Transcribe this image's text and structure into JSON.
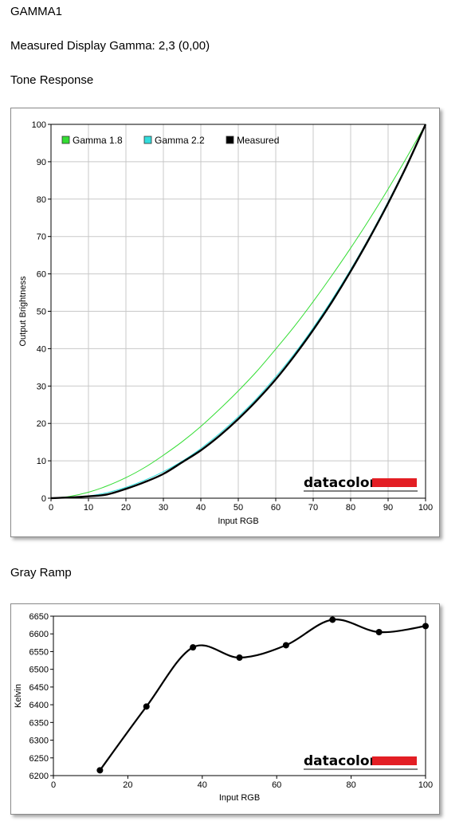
{
  "header": {
    "title": "GAMMA1",
    "gamma_label": "Measured Display Gamma: 2,3 (0,00)"
  },
  "sections": {
    "tone_title": "Tone Response",
    "gray_title": "Gray Ramp"
  },
  "brand": {
    "logo_text": "datacolor",
    "logo_color": "#e31e24"
  },
  "chart_data": [
    {
      "id": "tone",
      "type": "line",
      "xlabel": "Input RGB",
      "ylabel": "Output Brightness",
      "xlim": [
        0,
        100
      ],
      "ylim": [
        0,
        100
      ],
      "xticks": [
        "0",
        "10",
        "20",
        "30",
        "40",
        "50",
        "60",
        "70",
        "80",
        "90",
        "100"
      ],
      "yticks": [
        "0",
        "10",
        "20",
        "30",
        "40",
        "50",
        "60",
        "70",
        "80",
        "90",
        "100"
      ],
      "grid": true,
      "legend_position": "top-left",
      "series": [
        {
          "name": "Gamma 1.8",
          "color": "#33dd33",
          "x": [
            0,
            5,
            10,
            15,
            20,
            25,
            30,
            35,
            40,
            45,
            50,
            55,
            60,
            65,
            70,
            75,
            80,
            85,
            90,
            95,
            100
          ],
          "y": [
            0,
            0.5,
            1.6,
            3.3,
            5.5,
            8.2,
            11.5,
            15.1,
            19.2,
            23.8,
            28.7,
            34.0,
            39.9,
            46.0,
            52.6,
            59.6,
            66.9,
            74.6,
            82.7,
            91.2,
            100
          ]
        },
        {
          "name": "Gamma 2.2",
          "color": "#33dddd",
          "x": [
            0,
            5,
            10,
            15,
            20,
            25,
            30,
            35,
            40,
            45,
            50,
            55,
            60,
            65,
            70,
            75,
            80,
            85,
            90,
            95,
            100
          ],
          "y": [
            0,
            0.1,
            0.6,
            1.5,
            2.9,
            4.8,
            7.1,
            9.9,
            13.3,
            17.3,
            21.8,
            26.8,
            32.5,
            38.7,
            45.6,
            53.1,
            61.2,
            69.9,
            79.3,
            89.3,
            100
          ]
        },
        {
          "name": "Measured",
          "color": "#000000",
          "x": [
            0,
            5,
            10,
            15,
            20,
            25,
            30,
            35,
            40,
            45,
            50,
            55,
            60,
            65,
            70,
            75,
            80,
            85,
            90,
            95,
            100
          ],
          "y": [
            0,
            0.2,
            0.5,
            1.0,
            2.5,
            4.3,
            6.5,
            9.6,
            12.8,
            16.7,
            21.2,
            26.2,
            31.8,
            38.1,
            45.0,
            52.5,
            60.7,
            69.5,
            78.9,
            89.0,
            100
          ]
        }
      ]
    },
    {
      "id": "gray",
      "type": "line",
      "xlabel": "Input RGB",
      "ylabel": "Kelvin",
      "xlim": [
        0,
        100
      ],
      "ylim": [
        6200,
        6650
      ],
      "xticks": [
        "0",
        "20",
        "40",
        "60",
        "80",
        "100"
      ],
      "yticks": [
        "6200",
        "6250",
        "6300",
        "6350",
        "6400",
        "6450",
        "6500",
        "6550",
        "6600",
        "6650"
      ],
      "grid": false,
      "series": [
        {
          "name": "",
          "color": "#000000",
          "x": [
            12.5,
            25,
            37.5,
            50,
            62.5,
            75,
            87.5,
            100
          ],
          "y": [
            6215,
            6395,
            6562,
            6533,
            6568,
            6640,
            6605,
            6622
          ]
        }
      ]
    }
  ]
}
